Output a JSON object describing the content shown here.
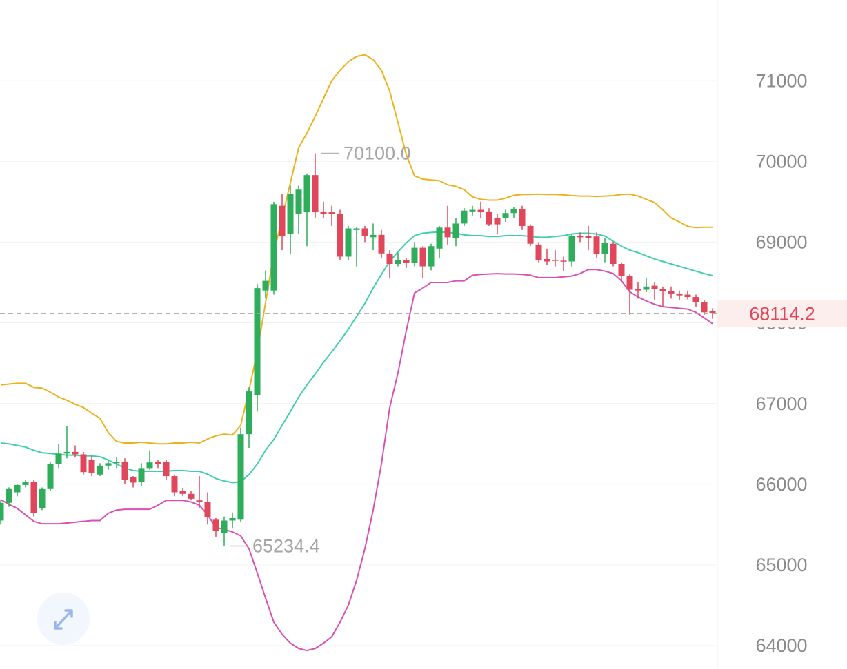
{
  "chart_data": {
    "type": "candlestick",
    "open": [
      65550,
      65770,
      65900,
      65990,
      66030,
      65700,
      65940,
      66250,
      66380,
      66400,
      66370,
      66300,
      66120,
      66230,
      66260,
      66280,
      66090,
      66030,
      66200,
      66280,
      66280,
      66100,
      65920,
      65880,
      65800,
      65780,
      65560,
      65400,
      65550,
      65560,
      66620,
      67100,
      68400,
      68400,
      69450,
      69100,
      69350,
      69370,
      69830,
      69380,
      69370,
      69350,
      68820,
      69150,
      69170,
      69060,
      69090,
      68850,
      68730,
      68780,
      68740,
      68930,
      68700,
      68920,
      69180,
      69050,
      69230,
      69380,
      69400,
      69380,
      69300,
      69300,
      69360,
      69410,
      69200,
      68970,
      68790,
      68780,
      68770,
      68760,
      69080,
      69080,
      69070,
      68850,
      68980,
      68730,
      68580,
      68420,
      68410,
      68460,
      68420,
      68390,
      68360,
      68350,
      68320,
      68260,
      68150
    ],
    "high": [
      65800,
      65960,
      66000,
      66050,
      66050,
      65960,
      66280,
      66500,
      66720,
      66480,
      66400,
      66350,
      66260,
      66300,
      66330,
      66320,
      66100,
      66260,
      66420,
      66300,
      66300,
      66120,
      65950,
      65920,
      66100,
      65900,
      65580,
      65600,
      65650,
      66700,
      67200,
      68480,
      68650,
      69500,
      69600,
      69700,
      69700,
      69850,
      70100,
      69500,
      69450,
      69400,
      69200,
      69190,
      69200,
      69230,
      69150,
      68900,
      68870,
      68800,
      69000,
      68950,
      68980,
      69200,
      69450,
      69300,
      69420,
      69450,
      69500,
      69420,
      69350,
      69400,
      69430,
      69450,
      69220,
      69000,
      68920,
      68900,
      68820,
      69100,
      69120,
      69200,
      69120,
      69050,
      69000,
      68750,
      68600,
      68500,
      68550,
      68500,
      68450,
      68450,
      68400,
      68400,
      68350,
      68280,
      68180
    ],
    "low": [
      65500,
      65720,
      65850,
      65960,
      65600,
      65680,
      65920,
      66200,
      66320,
      66330,
      66120,
      66100,
      66100,
      66180,
      66200,
      66000,
      65960,
      65980,
      66180,
      66200,
      66050,
      65850,
      65850,
      65800,
      65700,
      65500,
      65350,
      65234.4,
      65450,
      65530,
      66450,
      66900,
      68300,
      68350,
      68900,
      68850,
      69100,
      68950,
      69300,
      69300,
      69200,
      68780,
      68780,
      68700,
      69000,
      68900,
      68800,
      68550,
      68700,
      68680,
      68700,
      68550,
      68650,
      68800,
      68970,
      68950,
      69200,
      69330,
      69300,
      69200,
      69100,
      69250,
      69300,
      69150,
      68950,
      68750,
      68720,
      68700,
      68640,
      68700,
      69000,
      68900,
      68800,
      68750,
      68700,
      68500,
      68100,
      68300,
      68380,
      68280,
      68200,
      68300,
      68280,
      68290,
      68200,
      68100,
      68050
    ],
    "close": [
      65770,
      65940,
      65990,
      66030,
      65640,
      65940,
      66250,
      66380,
      66400,
      66370,
      66150,
      66140,
      66230,
      66260,
      66280,
      66050,
      66020,
      66200,
      66270,
      66250,
      66100,
      65900,
      65880,
      65820,
      65780,
      65590,
      65420,
      65550,
      65580,
      66620,
      67150,
      68430,
      68520,
      69470,
      69080,
      69600,
      69650,
      69830,
      69370,
      69350,
      69350,
      68820,
      69170,
      69170,
      69080,
      69090,
      68860,
      68730,
      68780,
      68740,
      68930,
      68700,
      68950,
      69180,
      69060,
      69230,
      69390,
      69400,
      69370,
      69220,
      69220,
      69360,
      69410,
      69200,
      68980,
      68780,
      68760,
      68770,
      68760,
      69080,
      69060,
      69050,
      68850,
      68990,
      68730,
      68580,
      68410,
      68400,
      68450,
      68420,
      68390,
      68360,
      68340,
      68320,
      68260,
      68130,
      68114.2
    ],
    "up_color": "#2eae5a",
    "down_color": "#e0475a",
    "bands": [
      {
        "color": "#ecb21e",
        "values": [
          67230,
          67240,
          67250,
          67250,
          67200,
          67190,
          67140,
          67080,
          67040,
          66990,
          66950,
          66880,
          66815,
          66640,
          66530,
          66510,
          66510,
          66520,
          66510,
          66500,
          66500,
          66510,
          66510,
          66520,
          66510,
          66560,
          66600,
          66620,
          66610,
          66730,
          67165,
          67640,
          68250,
          68860,
          69300,
          69735,
          70170,
          70350,
          70560,
          70780,
          71000,
          71130,
          71235,
          71300,
          71320,
          71260,
          71130,
          70870,
          70480,
          70085,
          69820,
          69780,
          69770,
          69760,
          69710,
          69690,
          69650,
          69560,
          69530,
          69520,
          69520,
          69545,
          69580,
          69590,
          69590,
          69595,
          69590,
          69590,
          69585,
          69575,
          69570,
          69570,
          69565,
          69570,
          69575,
          69590,
          69595,
          69570,
          69530,
          69490,
          69400,
          69300,
          69250,
          69195,
          69180,
          69185,
          69185
        ]
      },
      {
        "color": "#3fcfae",
        "values": [
          66510,
          66500,
          66480,
          66460,
          66420,
          66390,
          66380,
          66370,
          66360,
          66360,
          66350,
          66350,
          66340,
          66300,
          66250,
          66200,
          66170,
          66160,
          66160,
          66160,
          66160,
          66170,
          66170,
          66160,
          66160,
          66125,
          66070,
          66040,
          66020,
          66030,
          66120,
          66250,
          66420,
          66555,
          66730,
          66900,
          67080,
          67230,
          67365,
          67510,
          67640,
          67775,
          67920,
          68080,
          68240,
          68430,
          68600,
          68760,
          68880,
          68990,
          69080,
          69110,
          69120,
          69125,
          69120,
          69110,
          69090,
          69080,
          69080,
          69070,
          69070,
          69080,
          69080,
          69080,
          69070,
          69060,
          69060,
          69070,
          69080,
          69100,
          69110,
          69110,
          69100,
          69075,
          69010,
          68950,
          68900,
          68870,
          68830,
          68790,
          68760,
          68730,
          68700,
          68670,
          68640,
          68610,
          68585
        ]
      },
      {
        "color": "#d94fb3",
        "values": [
          65810,
          65750,
          65700,
          65620,
          65540,
          65510,
          65510,
          65510,
          65520,
          65530,
          65540,
          65550,
          65550,
          65640,
          65680,
          65690,
          65690,
          65690,
          65690,
          65740,
          65800,
          65800,
          65800,
          65780,
          65740,
          65620,
          65465,
          65440,
          65410,
          65360,
          65200,
          64900,
          64590,
          64290,
          64140,
          64030,
          63965,
          63940,
          63965,
          64030,
          64110,
          64290,
          64500,
          64810,
          65200,
          65680,
          66250,
          66950,
          67380,
          67900,
          68370,
          68430,
          68500,
          68500,
          68500,
          68520,
          68520,
          68590,
          68600,
          68605,
          68610,
          68605,
          68605,
          68600,
          68590,
          68560,
          68560,
          68560,
          68570,
          68580,
          68610,
          68660,
          68660,
          68640,
          68610,
          68520,
          68385,
          68320,
          68270,
          68230,
          68200,
          68190,
          68180,
          68170,
          68130,
          68060,
          67990
        ]
      }
    ],
    "annotations": [
      {
        "value": 70100,
        "label": "70100.0"
      },
      {
        "value": 65234.4,
        "label": "65234.4"
      }
    ],
    "last_price": 68114.2,
    "ylim": [
      63710,
      72000
    ],
    "yticks": [
      64000,
      65000,
      66000,
      67000,
      68000,
      69000,
      70000,
      71000
    ],
    "grid": true
  }
}
